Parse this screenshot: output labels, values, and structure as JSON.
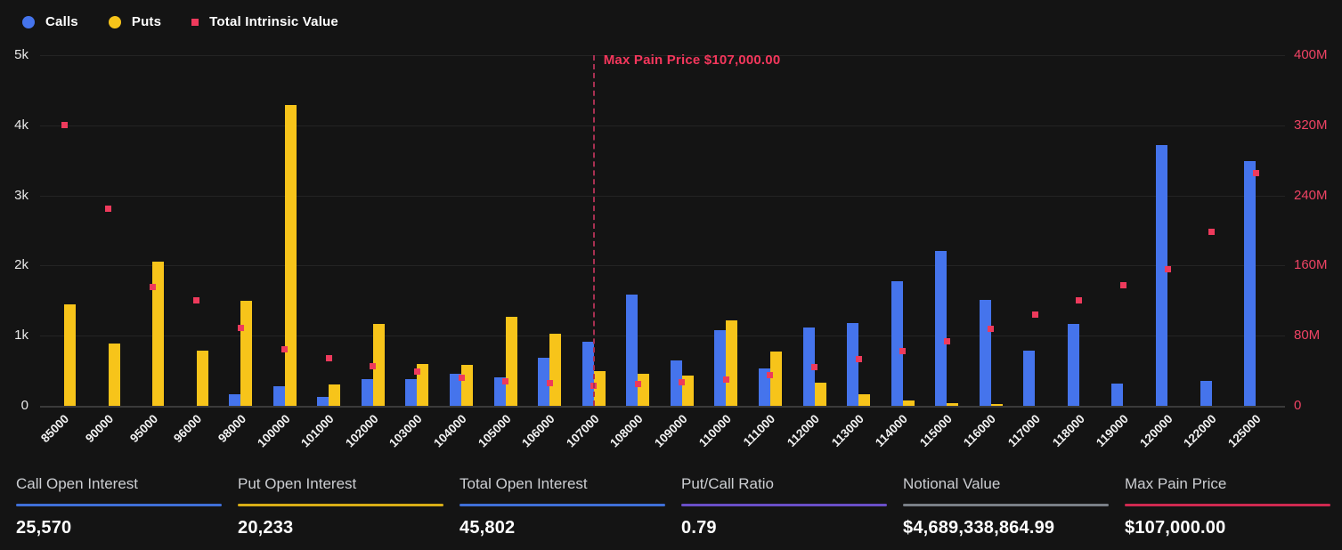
{
  "legend": [
    {
      "label": "Calls",
      "color": "#4574ec",
      "shape": "circle"
    },
    {
      "label": "Puts",
      "color": "#f7c41a",
      "shape": "circle"
    },
    {
      "label": "Total Intrinsic Value",
      "color": "#ee3a5c",
      "shape": "square"
    }
  ],
  "chart_data": {
    "type": "bar",
    "title": "",
    "categories": [
      "85000",
      "90000",
      "95000",
      "96000",
      "98000",
      "100000",
      "101000",
      "102000",
      "103000",
      "104000",
      "105000",
      "106000",
      "107000",
      "108000",
      "109000",
      "110000",
      "111000",
      "112000",
      "113000",
      "114000",
      "115000",
      "116000",
      "117000",
      "118000",
      "119000",
      "120000",
      "122000",
      "125000"
    ],
    "series": [
      {
        "name": "Calls",
        "type": "bar",
        "axis": "left",
        "color": "#4574ec",
        "values": [
          0,
          0,
          0,
          0,
          170,
          280,
          130,
          380,
          380,
          460,
          400,
          680,
          910,
          1580,
          650,
          1080,
          530,
          1120,
          1180,
          1780,
          2210,
          1510,
          790,
          1170,
          320,
          3720,
          360,
          3490
        ]
      },
      {
        "name": "Puts",
        "type": "bar",
        "axis": "left",
        "color": "#f7c41a",
        "values": [
          1450,
          890,
          2060,
          790,
          1500,
          4290,
          300,
          1170,
          600,
          580,
          1270,
          1030,
          500,
          460,
          430,
          1220,
          780,
          330,
          170,
          80,
          40,
          25,
          0,
          0,
          0,
          0,
          0,
          0
        ]
      },
      {
        "name": "Total Intrinsic Value",
        "type": "scatter",
        "axis": "right",
        "color": "#ee3a5c",
        "values_millions": [
          320,
          225,
          136,
          120,
          89,
          64,
          54,
          45,
          39,
          32,
          28,
          26,
          23,
          25,
          27,
          30,
          35,
          44,
          53,
          62,
          74,
          88,
          104,
          120,
          138,
          156,
          198,
          265
        ]
      }
    ],
    "left_axis": {
      "ticks": [
        "5k",
        "4k",
        "3k",
        "2k",
        "1k",
        "0"
      ],
      "max": 5000,
      "min": 0
    },
    "right_axis": {
      "ticks": [
        "400M",
        "320M",
        "240M",
        "160M",
        "80M",
        "0"
      ],
      "max_millions": 400,
      "min": 0
    },
    "grid": "horizontal-only",
    "legend_position": "top-left",
    "max_pain": {
      "label": "Max Pain Price $107,000.00",
      "category": "107000",
      "line_color": "#a83052",
      "text_color": "#f4375c"
    }
  },
  "stats": [
    {
      "label": "Call Open Interest",
      "value": "25,570",
      "accent": "#3f6fd8"
    },
    {
      "label": "Put Open Interest",
      "value": "20,233",
      "accent": "#d9ae16"
    },
    {
      "label": "Total Open Interest",
      "value": "45,802",
      "accent": "#3f6fd8"
    },
    {
      "label": "Put/Call Ratio",
      "value": "0.79",
      "accent": "#6a4fc8"
    },
    {
      "label": "Notional Value",
      "value": "$4,689,338,864.99",
      "accent": "#7a7f87"
    },
    {
      "label": "Max Pain Price",
      "value": "$107,000.00",
      "accent": "#cf2950"
    }
  ]
}
